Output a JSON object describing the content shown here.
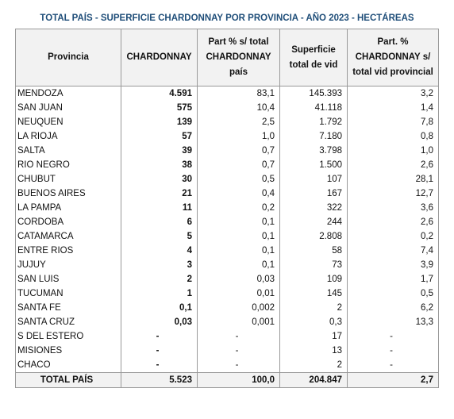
{
  "header": {
    "title": "TOTAL PAÍS - SUPERFICIE CHARDONNAY POR PROVINCIA - AÑO 2023 - HECTÁREAS"
  },
  "table": {
    "columns": [
      "Provincia",
      "CHARDONNAY",
      "Part % s/ total CHARDONNAY país",
      "Superficie total de vid",
      "Part. % CHARDONNAY s/ total vid provincial"
    ],
    "rows": [
      [
        "MENDOZA",
        "4.591",
        "83,1",
        "145.393",
        "3,2"
      ],
      [
        "SAN JUAN",
        "575",
        "10,4",
        "41.118",
        "1,4"
      ],
      [
        "NEUQUEN",
        "139",
        "2,5",
        "1.792",
        "7,8"
      ],
      [
        "LA RIOJA",
        "57",
        "1,0",
        "7.180",
        "0,8"
      ],
      [
        "SALTA",
        "39",
        "0,7",
        "3.798",
        "1,0"
      ],
      [
        "RIO NEGRO",
        "38",
        "0,7",
        "1.500",
        "2,6"
      ],
      [
        "CHUBUT",
        "30",
        "0,5",
        "107",
        "28,1"
      ],
      [
        "BUENOS AIRES",
        "21",
        "0,4",
        "167",
        "12,7"
      ],
      [
        "LA PAMPA",
        "11",
        "0,2",
        "322",
        "3,6"
      ],
      [
        "CORDOBA",
        "6",
        "0,1",
        "244",
        "2,6"
      ],
      [
        "CATAMARCA",
        "5",
        "0,1",
        "2.808",
        "0,2"
      ],
      [
        "ENTRE RIOS",
        "4",
        "0,1",
        "58",
        "7,4"
      ],
      [
        "JUJUY",
        "3",
        "0,1",
        "73",
        "3,9"
      ],
      [
        "SAN LUIS",
        "2",
        "0,03",
        "109",
        "1,7"
      ],
      [
        "TUCUMAN",
        "1",
        "0,01",
        "145",
        "0,5"
      ],
      [
        "SANTA FE",
        "0,1",
        "0,002",
        "2",
        "6,2"
      ],
      [
        "SANTA CRUZ",
        "0,03",
        "0,001",
        "0,3",
        "13,3"
      ],
      [
        "S DEL ESTERO",
        "-",
        "-",
        "17",
        "-"
      ],
      [
        "MISIONES",
        "-",
        "-",
        "13",
        "-"
      ],
      [
        "CHACO",
        "-",
        "-",
        "2",
        "-"
      ]
    ],
    "total": [
      "TOTAL PAÍS",
      "5.523",
      "100,0",
      "204.847",
      "2,7"
    ]
  }
}
